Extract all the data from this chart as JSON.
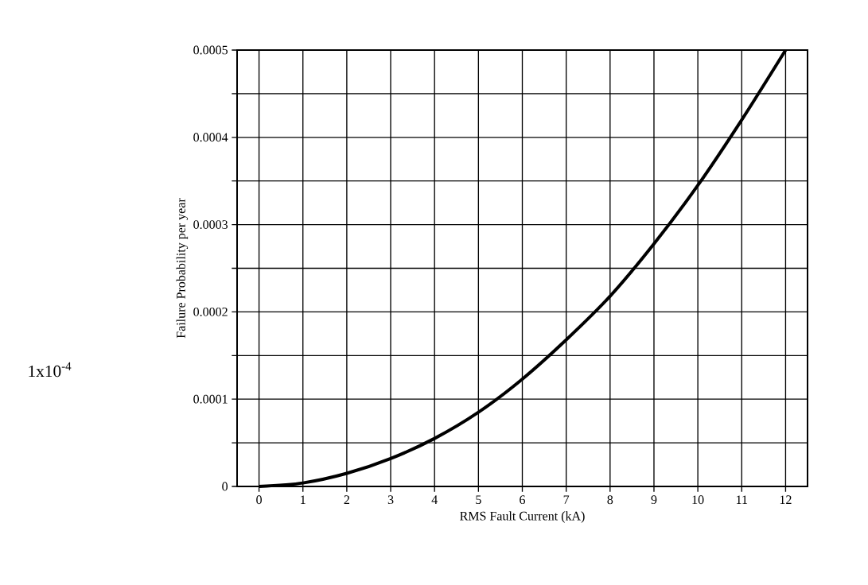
{
  "chart_data": {
    "type": "line",
    "xlabel": "RMS Fault Current (kA)",
    "ylabel": "Failure Probability per year",
    "x": [
      0,
      1,
      2,
      3,
      4,
      5,
      6,
      7,
      8,
      9,
      10,
      11,
      12
    ],
    "series": [
      {
        "color": "#000000",
        "values": [
          0,
          4e-06,
          1.5e-05,
          3.2e-05,
          5.5e-05,
          8.5e-05,
          0.000123,
          0.000168,
          0.000218,
          0.000278,
          0.000345,
          0.00042,
          0.0005
        ]
      }
    ],
    "xlim": [
      -0.5,
      12.5
    ],
    "ylim": [
      0,
      0.0005
    ],
    "xticks": [
      0,
      1,
      2,
      3,
      4,
      5,
      6,
      7,
      8,
      9,
      10,
      11,
      12
    ],
    "yticks": [
      0,
      {
        "value": 5e-05,
        "label": null
      },
      0.0001,
      {
        "value": 0.00015,
        "label": null
      },
      0.0002,
      {
        "value": 0.00025,
        "label": null
      },
      0.0003,
      {
        "value": 0.00035,
        "label": null
      },
      0.0004,
      {
        "value": 0.00045,
        "label": null
      },
      0.0005
    ],
    "grid": true,
    "marker": "none",
    "line_style": "solid",
    "annotations": [
      "1x10$^{-4}$"
    ]
  }
}
